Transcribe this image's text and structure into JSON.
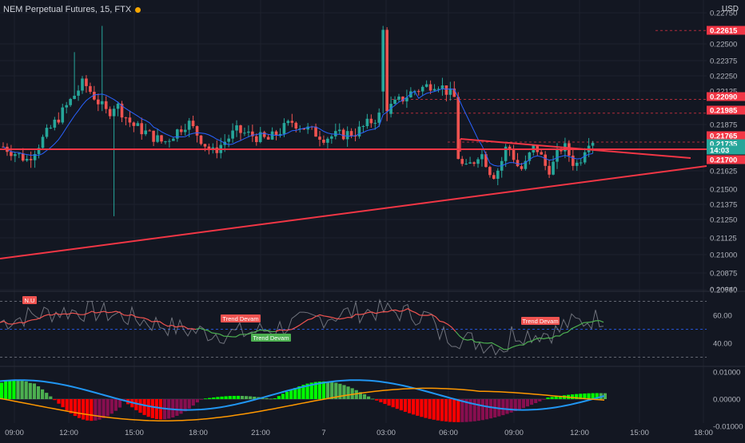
{
  "header": {
    "symbol_title": "NEM Perpetual Futures, 15, FTX",
    "currency": "USD",
    "status_dot_color": "#f7a600"
  },
  "colors": {
    "background": "#131722",
    "up": "#26a69a",
    "down": "#ef5350",
    "trendline": "#f23645",
    "ma": "#2962ff",
    "grid": "#1e222d",
    "axis_text": "#b2b5be",
    "osc_bright_up": "#00ff00",
    "osc_dark_up": "#4caf50",
    "osc_bright_down": "#ff0000",
    "osc_dark_down": "#880e4f"
  },
  "chart_data": [
    {
      "type": "candlestick",
      "title": "NEM Perpetual Futures, 15, FTX",
      "x_ticks": [
        "09:00",
        "12:00",
        "15:00",
        "18:00",
        "21:00",
        "7",
        "03:00",
        "06:00",
        "09:00",
        "12:00",
        "15:00",
        "18:00"
      ],
      "y_ticks": [
        "0.22750",
        "0.22500",
        "0.22375",
        "0.22250",
        "0.22125",
        "0.21875",
        "0.21625",
        "0.21500",
        "0.21375",
        "0.21250",
        "0.21125",
        "0.21000",
        "0.20875",
        "0.20750",
        "0.20640"
      ],
      "y_range": [
        0.2064,
        0.2275
      ],
      "price_labels": [
        {
          "value": "0.22615",
          "color": "#f23645"
        },
        {
          "value": "0.22090",
          "color": "#f23645"
        },
        {
          "value": "0.21985",
          "color": "#f23645"
        },
        {
          "value": "0.21765",
          "color": "#f23645"
        },
        {
          "value": "0.21735",
          "color": "#26a69a"
        },
        {
          "value": "14:03",
          "color": "#26a69a"
        },
        {
          "value": "0.21700",
          "color": "#f23645"
        }
      ],
      "horizontal_levels": [
        0.22615,
        0.2209,
        0.21985,
        0.21765
      ],
      "support_level": 0.2171,
      "close_range": [
        0.2164,
        0.21745
      ]
    },
    {
      "type": "line",
      "name": "oscillator",
      "y_ticks": [
        "60.00",
        "40.00"
      ],
      "levels": [
        70,
        50,
        30
      ],
      "labels": [
        {
          "text": "N.U",
          "kind": "sell"
        },
        {
          "text": "Trend Devam",
          "kind": "sell"
        },
        {
          "text": "Trend Devam",
          "kind": "buy"
        },
        {
          "text": "Trend Devam",
          "kind": "sell"
        }
      ]
    },
    {
      "type": "bar",
      "name": "momentum histogram",
      "y_ticks": [
        "0.01000",
        "0.00000",
        "-0.01000"
      ],
      "y_range": [
        -0.0118,
        0.012
      ]
    }
  ]
}
